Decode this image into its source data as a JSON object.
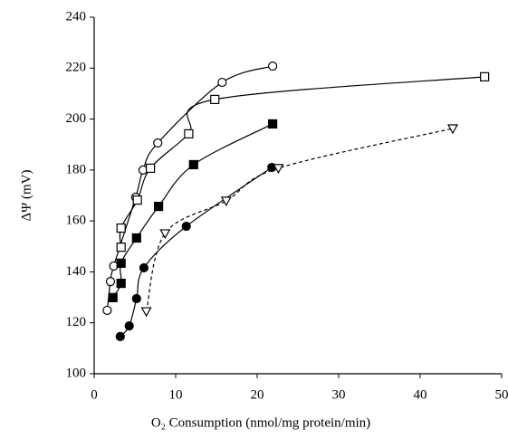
{
  "chart_data": {
    "type": "scatter",
    "xlabel": "O₂ Consumption (nmol/mg protein/min)",
    "ylabel": "ΔΨ (mV)",
    "xlim": [
      0,
      50
    ],
    "xticks": [
      0,
      10,
      20,
      30,
      40,
      50
    ],
    "ylim": [
      100,
      240
    ],
    "yticks": [
      100,
      120,
      140,
      160,
      180,
      200,
      220,
      240
    ],
    "series": [
      {
        "marker": "circle-open",
        "color": "#000000",
        "dash": false,
        "x": [
          1.6,
          2.0,
          2.4,
          5.1,
          6.0,
          7.8,
          15.7,
          21.9
        ],
        "values": [
          124.9,
          136.2,
          142.3,
          169.3,
          180.0,
          190.6,
          214.4,
          220.8
        ]
      },
      {
        "marker": "square-open",
        "color": "#000000",
        "dash": false,
        "x": [
          3.3,
          3.3,
          5.3,
          6.9,
          11.6,
          14.8,
          47.9
        ],
        "values": [
          149.7,
          157.2,
          168.2,
          180.7,
          194.2,
          207.7,
          216.6
        ]
      },
      {
        "marker": "square-filled",
        "color": "#000000",
        "dash": false,
        "x": [
          2.3,
          3.3,
          3.3,
          5.2,
          7.9,
          12.2,
          21.9
        ],
        "values": [
          129.9,
          135.5,
          143.4,
          153.3,
          165.7,
          182.1,
          198.1
        ]
      },
      {
        "marker": "circle-filled",
        "color": "#000000",
        "dash": false,
        "x": [
          3.2,
          4.3,
          5.2,
          6.1,
          11.3,
          21.8
        ],
        "values": [
          114.6,
          118.8,
          129.5,
          141.6,
          157.9,
          181.0
        ]
      },
      {
        "marker": "triangle-open",
        "color": "#000000",
        "dash": true,
        "x": [
          6.4,
          8.7,
          16.2,
          22.6,
          44.0
        ],
        "values": [
          124.5,
          155.1,
          167.9,
          180.7,
          196.3
        ]
      }
    ]
  }
}
